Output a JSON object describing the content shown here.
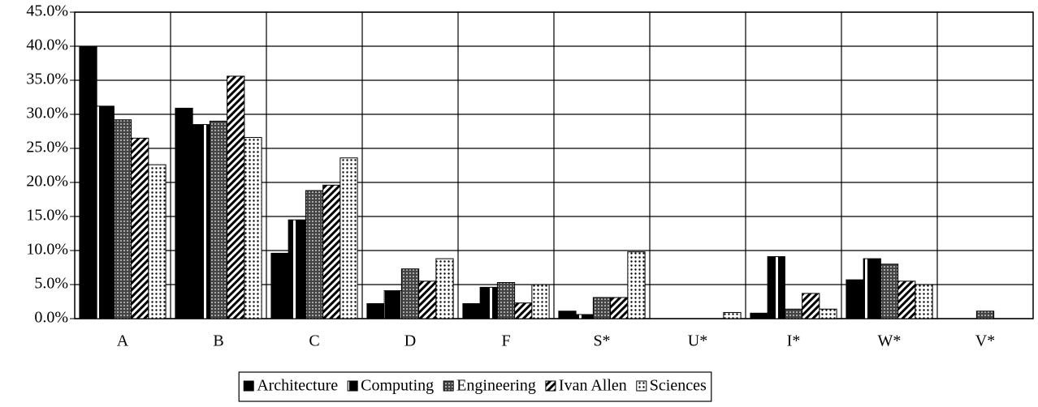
{
  "chart_data": {
    "type": "bar",
    "categories": [
      "A",
      "B",
      "C",
      "D",
      "F",
      "S*",
      "U*",
      "I*",
      "W*",
      "V*"
    ],
    "series": [
      {
        "name": "Architecture",
        "color": "#000000",
        "pattern": "solid",
        "values": [
          40.0,
          30.9,
          9.6,
          2.2,
          2.2,
          1.1,
          0,
          0.8,
          5.7,
          0
        ]
      },
      {
        "name": "Computing",
        "color": "#000000",
        "pattern": "vstripe",
        "values": [
          31.2,
          28.5,
          14.5,
          4.1,
          4.6,
          0.6,
          0,
          9.1,
          8.8,
          0
        ]
      },
      {
        "name": "Engineering",
        "color": "#000000",
        "pattern": "cross",
        "values": [
          29.2,
          29.0,
          18.8,
          7.3,
          5.3,
          3.1,
          0,
          1.4,
          8.0,
          1.1
        ]
      },
      {
        "name": "Ivan Allen",
        "color": "#000000",
        "pattern": "diagonal",
        "values": [
          26.5,
          35.6,
          19.6,
          5.5,
          2.3,
          3.1,
          0,
          3.7,
          5.5,
          0
        ]
      },
      {
        "name": "Sciences",
        "color": "#000000",
        "pattern": "dots",
        "values": [
          22.6,
          26.6,
          23.6,
          8.8,
          5.0,
          9.8,
          0.9,
          1.4,
          5.0,
          0
        ]
      }
    ],
    "ylim": [
      0,
      45
    ],
    "yticks": [
      {
        "value": 0,
        "label": "0.0%"
      },
      {
        "value": 5,
        "label": "5.0%"
      },
      {
        "value": 10,
        "label": "10.0%"
      },
      {
        "value": 15,
        "label": "15.0%"
      },
      {
        "value": 20,
        "label": "20.0%"
      },
      {
        "value": 25,
        "label": "25.0%"
      },
      {
        "value": 30,
        "label": "30.0%"
      },
      {
        "value": 35,
        "label": "35.0%"
      },
      {
        "value": 40,
        "label": "40.0%"
      },
      {
        "value": 45,
        "label": "45.0%"
      }
    ],
    "grid": true,
    "legend": "bottom"
  }
}
